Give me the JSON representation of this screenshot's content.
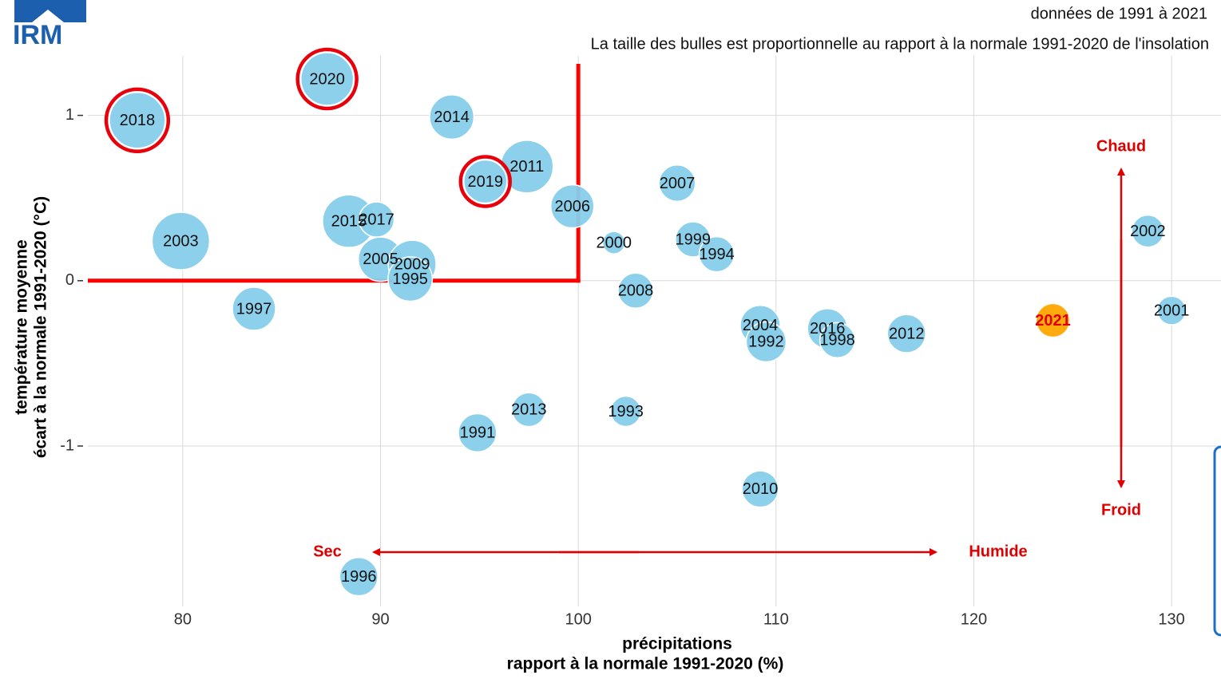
{
  "logo": "IRM",
  "chart_data": {
    "type": "bubble",
    "subtitle": [
      "données de 1991 à 2021",
      "La taille des bulles est proportionnelle au rapport à la normale 1991-2020 de l'insolation"
    ],
    "x_label": [
      "précipitations",
      "rapport à la normale 1991-2020 (%)"
    ],
    "y_label": [
      "température moyenne",
      "écart à la normale 1991-2020 (°C)"
    ],
    "labels": [
      "2018",
      "2020",
      "2014",
      "2011",
      "2019",
      "2006",
      "2007",
      "2015",
      "2017",
      "2003",
      "2000",
      "1999",
      "1994",
      "2002",
      "2005",
      "2009",
      "1995",
      "2008",
      "1997",
      "2001",
      "2021",
      "2004",
      "1992",
      "2016",
      "1998",
      "2012",
      "2013",
      "1993",
      "1991",
      "2010",
      "1996"
    ],
    "x": [
      77.7,
      87.3,
      93.6,
      97.4,
      95.3,
      99.7,
      105.0,
      88.4,
      89.8,
      79.9,
      101.8,
      105.8,
      107.0,
      128.8,
      90.0,
      91.6,
      91.5,
      102.9,
      83.6,
      130.0,
      124.0,
      109.2,
      109.5,
      112.6,
      113.1,
      116.6,
      97.5,
      102.4,
      94.9,
      109.2,
      88.9
    ],
    "y": [
      0.97,
      1.22,
      0.99,
      0.69,
      0.6,
      0.45,
      0.59,
      0.36,
      0.37,
      0.24,
      0.23,
      0.25,
      0.16,
      0.3,
      0.13,
      0.1,
      0.01,
      -0.06,
      -0.17,
      -0.18,
      -0.24,
      -0.27,
      -0.37,
      -0.29,
      -0.36,
      -0.32,
      -0.78,
      -0.79,
      -0.92,
      -1.26,
      -1.79
    ],
    "sizes": [
      128,
      124.5,
      115,
      124.5,
      113.6,
      113.6,
      106,
      124.5,
      104.5,
      130,
      90,
      104.5,
      104.5,
      101,
      115,
      119,
      115,
      104.5,
      113.6,
      97,
      103,
      110,
      110,
      110,
      104.5,
      108,
      103,
      99,
      108,
      106,
      108
    ],
    "color": "#87ceeb",
    "colors": [
      "#87ceeb",
      "#87ceeb",
      "#87ceeb",
      "#87ceeb",
      "#87ceeb",
      "#87ceeb",
      "#87ceeb",
      "#87ceeb",
      "#87ceeb",
      "#87ceeb",
      "#87ceeb",
      "#87ceeb",
      "#87ceeb",
      "#87ceeb",
      "#87ceeb",
      "#87ceeb",
      "#87ceeb",
      "#87ceeb",
      "#87ceeb",
      "#87ceeb",
      "#ffa500",
      "#87ceeb",
      "#87ceeb",
      "#87ceeb",
      "#87ceeb",
      "#87ceeb",
      "#87ceeb",
      "#87ceeb",
      "#87ceeb",
      "#87ceeb",
      "#87ceeb"
    ],
    "label_colors": [
      "#111",
      "#111",
      "#111",
      "#111",
      "#111",
      "#111",
      "#111",
      "#111",
      "#111",
      "#111",
      "#111",
      "#111",
      "#111",
      "#111",
      "#111",
      "#111",
      "#111",
      "#111",
      "#111",
      "#111",
      "#e00000",
      "#111",
      "#111",
      "#111",
      "#111",
      "#111",
      "#111",
      "#111",
      "#111",
      "#111",
      "#111"
    ],
    "highlighted": [
      true,
      true,
      false,
      false,
      true,
      false,
      false,
      false,
      false,
      false,
      false,
      false,
      false,
      false,
      false,
      false,
      false,
      false,
      false,
      false,
      false,
      false,
      false,
      false,
      false,
      false,
      false,
      false,
      false,
      false,
      false
    ],
    "highlight_color": "#e8000b",
    "reference_lines": {
      "x": 100,
      "y": 0,
      "color": "#ff0000"
    },
    "xlim": [
      75.2,
      132.5
    ],
    "ylim": [
      -1.97,
      1.36
    ],
    "xticks": [
      80,
      90,
      100,
      110,
      120,
      130
    ],
    "yticks": [
      -1,
      0,
      1
    ],
    "grid": true,
    "annotations": {
      "hot": "Chaud",
      "cold": "Froid",
      "dry": "Sec",
      "wet": "Humide"
    }
  }
}
